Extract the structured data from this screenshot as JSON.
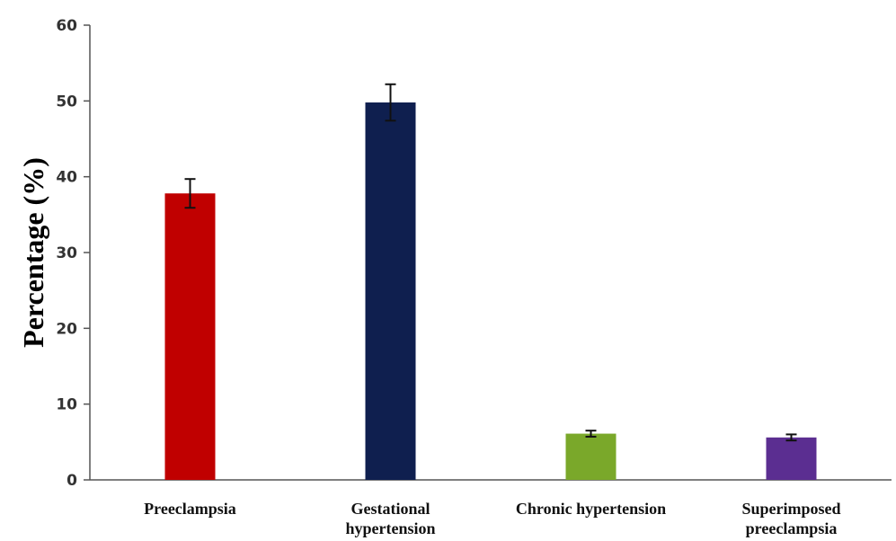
{
  "chart_data": {
    "type": "bar",
    "title": "",
    "xlabel": "",
    "ylabel": "Percentage (%)",
    "ylim": [
      0,
      60
    ],
    "yticks": [
      0,
      10,
      20,
      30,
      40,
      50,
      60
    ],
    "grid": false,
    "legend": "none",
    "categories": [
      [
        "Preeclampsia"
      ],
      [
        "Gestational",
        "hypertension"
      ],
      [
        "Chronic hypertension"
      ],
      [
        "Superimposed",
        "preeclampsia"
      ]
    ],
    "values": [
      37.8,
      49.8,
      6.1,
      5.6
    ],
    "errors": [
      1.9,
      2.4,
      0.4,
      0.4
    ],
    "colors": [
      "#c00000",
      "#0f1f4f",
      "#7aa82a",
      "#5b2e91"
    ]
  }
}
